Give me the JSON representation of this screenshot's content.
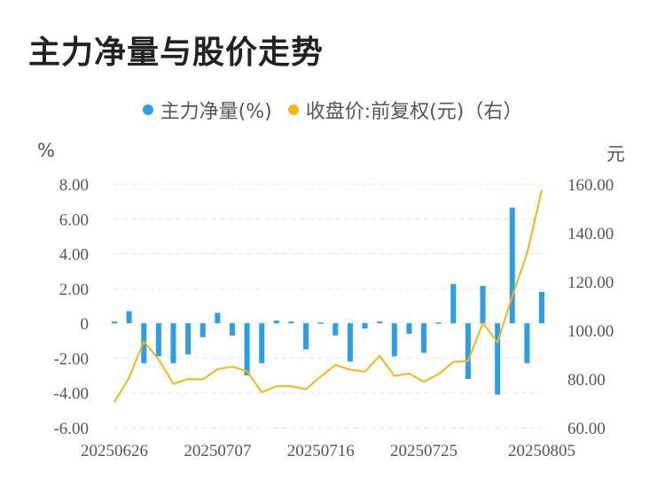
{
  "chart_data": {
    "type": "bar+line",
    "title": "主力净量与股价走势",
    "legend": [
      {
        "label": "主力净量(%)",
        "color": "#2b9ee8"
      },
      {
        "label": "收盘价:前复权(元)（右）",
        "color": "#f5b513"
      }
    ],
    "left_unit": "%",
    "right_unit": "元",
    "y_left": {
      "min": -6,
      "max": 8,
      "ticks": [
        "8.00",
        "6.00",
        "4.00",
        "2.00",
        "0",
        "-2.00",
        "-4.00",
        "-6.00"
      ]
    },
    "y_right": {
      "min": 60,
      "max": 160,
      "ticks": [
        "160.00",
        "140.00",
        "120.00",
        "100.00",
        "80.00",
        "60.00"
      ]
    },
    "x_ticks": [
      {
        "index": 0,
        "label": "20250626"
      },
      {
        "index": 7,
        "label": "20250707"
      },
      {
        "index": 14,
        "label": "20250716"
      },
      {
        "index": 21,
        "label": "20250725"
      },
      {
        "index": 29,
        "label": "20250805"
      }
    ],
    "series": [
      {
        "name": "主力净量(%)",
        "type": "bar",
        "color": "#2b9ee8",
        "values": [
          0.1,
          0.7,
          -2.3,
          -1.9,
          -2.3,
          -1.8,
          -0.8,
          0.6,
          -0.7,
          -3.0,
          -2.3,
          0.15,
          0.1,
          -1.5,
          0.05,
          -0.7,
          -2.2,
          -0.3,
          0.1,
          -1.9,
          -0.6,
          -1.7,
          0.05,
          2.25,
          -3.2,
          2.15,
          -4.1,
          6.65,
          -2.3,
          1.8
        ]
      },
      {
        "name": "收盘价:前复权(元)（右）",
        "type": "line",
        "color": "#f5b513",
        "values": [
          70.5,
          80.5,
          95.5,
          88.0,
          78.0,
          80.0,
          79.8,
          84.0,
          85.0,
          83.2,
          74.5,
          77.0,
          77.0,
          75.8,
          81.0,
          85.8,
          83.8,
          83.0,
          89.5,
          81.2,
          82.2,
          78.8,
          82.0,
          87.0,
          87.3,
          103.0,
          95.0,
          114.0,
          131.5,
          157.5
        ]
      }
    ]
  }
}
